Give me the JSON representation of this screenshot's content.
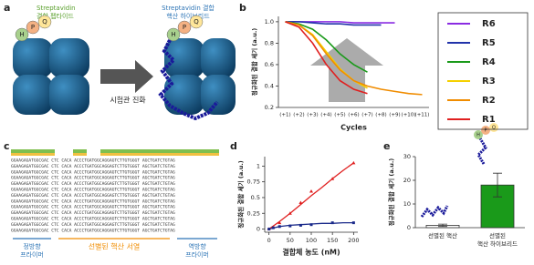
{
  "panel_labels": [
    "a",
    "b",
    "c",
    "d",
    "e"
  ],
  "panel_a": {
    "left_label": [
      "Streptavidin",
      "결합 펩타이드"
    ],
    "right_label": [
      "Streptavidin 결합",
      "핵산 하이브리드"
    ],
    "arrow_label": "시험관 진화",
    "residues": [
      "H",
      "P",
      "Q"
    ]
  },
  "panel_c": {
    "rows": [
      "GGAAGAGATGGCGAC CTC CACA ACCCTGATGGCAGGAGTCTTGTGGGT AGCTGATCTGTAG",
      "GGAAGAGATGGCGAC CTC CACA ACCCTGATGGCAGGAGTCTTGTGGGT AGCTGATCTGTAG",
      "GGAAGAGATGGCGAC CTC CACA ACCCTGATGGCAGGAGTCTTGTGGGT AGCTGATCTGTAG",
      "GGAAGAGATGGCGAC CTC CACA ACCCTGATGGCAGGAGTCTTGTGGGT AGCTGATCTGTAG",
      "GGAAGAGATGGCGAC CTC CACA ACCCTGATGGCAGGAGTCTTGTGGGT AGCTGATCTGTAG",
      "GGAAGAGATGGCGAC CTC CACA ACCCTGATGGCAGGAGTCTTGTGGGT AGCTGATCTGTAG",
      "GGAAGAGATGGCGAC CTC CACA ACCCTGATGGCAGGAGTCTTGTGGGT AGCTGATCTGTAG",
      "GGAAGAGATGGCGAC CTC CACA ACCCTGATGGCAGGAGTCTTGTGGGT AGCTGATCTGTAG",
      "GGAAGAGATGGCGAC CTC CACA ACCCTGATGGCAGGAGTCTTGTGGGT AGCTGATCTGTAG",
      "GGAAGAGATGGCGAC CTC CACA ACCCTGATGGCAGGAGTCTTGTGGGT AGCTGATCTGTAG",
      "GGAAGAGATGGCGAC CTC CACA ACCCTGATGGCAGGAGTCTTGTGGGT AGCTGATCTGTAG",
      "GGAAGAGATGGCGAC CTC CACA ACCCTGATGGCAGGAGTCTTGTGGGT AGCTGATCTGTAG",
      "GGAAGAGATGGCGAC CTC CACA ACCCTGATGGCAGGAGTCTTGTGGGT AGCTGATCTGTAG"
    ],
    "forward_primer": [
      "정방향",
      "프라이머"
    ],
    "selected": "선별된 핵산 서열",
    "reverse_primer": [
      "역방향",
      "프라이머"
    ]
  },
  "chart_data": [
    {
      "type": "line",
      "categories": [
        "(+1)",
        "(+2)",
        "(+3)",
        "(+4)",
        "(+5)",
        "(+6)",
        "(+7)",
        "(+8)",
        "(+9)",
        "(+10)",
        "(+11)"
      ],
      "xlabel": "Cycles",
      "ylabel": "정규화된 결합 세기 (a.u.)",
      "ylim": [
        0.2,
        1.05
      ],
      "yticks": [
        0.2,
        0.4,
        0.6,
        0.8,
        {
          "value": 1,
          "label": "1.0"
        }
      ],
      "series": [
        {
          "name": "R6",
          "color": "#8a2be2",
          "values": [
            1,
            1,
            1,
            1,
            1,
            0.99,
            0.99,
            0.99,
            0.99,
            null,
            null
          ]
        },
        {
          "name": "R5",
          "color": "#2233aa",
          "values": [
            1,
            1,
            0.99,
            0.98,
            0.98,
            0.97,
            0.97,
            0.97,
            null,
            null,
            null
          ]
        },
        {
          "name": "R4",
          "color": "#1a9a1a",
          "values": [
            1,
            0.98,
            0.93,
            0.83,
            0.7,
            0.6,
            0.53,
            null,
            null,
            null,
            null
          ]
        },
        {
          "name": "R3",
          "color": "#f5d000",
          "values": [
            1,
            0.97,
            0.88,
            0.72,
            0.56,
            0.45,
            0.38,
            null,
            null,
            null,
            null
          ]
        },
        {
          "name": "R2",
          "color": "#f08c00",
          "values": [
            1,
            0.97,
            0.87,
            0.7,
            0.55,
            0.45,
            0.4,
            0.37,
            0.35,
            0.33,
            0.32
          ]
        },
        {
          "name": "R1",
          "color": "#e02020",
          "values": [
            1,
            0.95,
            0.8,
            0.6,
            0.45,
            0.37,
            0.33,
            null,
            null,
            null,
            null
          ]
        }
      ]
    },
    {
      "type": "scatter",
      "xlabel": "결합체 농도 (nM)",
      "ylabel": "정규화된 결합 세기 (a.u.)",
      "xlim": [
        -10,
        210
      ],
      "xticks": [
        0,
        50,
        100,
        150,
        200
      ],
      "ylim": [
        -0.05,
        1.15
      ],
      "yticks": [
        0,
        0.25,
        0.5,
        0.75,
        1
      ],
      "series": [
        {
          "color": "#e02020",
          "x": [
            0,
            10,
            25,
            50,
            75,
            100,
            150,
            200
          ],
          "values": [
            0,
            0.03,
            0.1,
            0.25,
            0.42,
            0.6,
            0.8,
            1.05
          ]
        },
        {
          "color": "#1a2a8a",
          "x": [
            0,
            10,
            25,
            50,
            75,
            100,
            150,
            200
          ],
          "values": [
            0,
            0.02,
            0.04,
            0.05,
            0.06,
            0.07,
            0.1,
            0.1
          ]
        }
      ],
      "fits": [
        {
          "color": "#e02020",
          "x": [
            0,
            25,
            50,
            75,
            100,
            125,
            150,
            175,
            200
          ],
          "values": [
            0,
            0.12,
            0.25,
            0.39,
            0.53,
            0.66,
            0.8,
            0.93,
            1.05
          ]
        },
        {
          "color": "#1a2a8a",
          "x": [
            0,
            25,
            50,
            75,
            100,
            125,
            150,
            175,
            200
          ],
          "values": [
            0,
            0.04,
            0.06,
            0.07,
            0.08,
            0.09,
            0.09,
            0.1,
            0.1
          ]
        }
      ]
    },
    {
      "type": "bar",
      "ylabel": "정규화된 결합 세기 (a.u.)",
      "categories": [
        [
          "선별된 핵산"
        ],
        [
          "선별된",
          "핵산 하이브리드"
        ]
      ],
      "values": [
        1,
        18
      ],
      "errors": [
        0.5,
        5
      ],
      "colors": [
        "#ffffff",
        "#1a9a1a"
      ],
      "ylim": [
        0,
        30
      ],
      "yticks": [
        0,
        10,
        20,
        30
      ]
    }
  ]
}
